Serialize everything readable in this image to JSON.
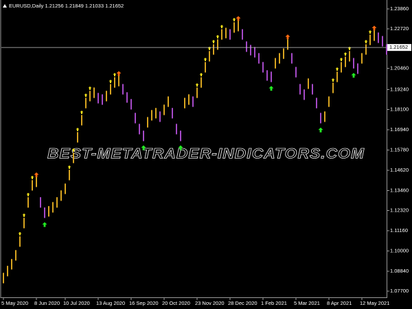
{
  "chart_data": {
    "type": "range-bar",
    "title": "EURUSD,Daily  1.21256 1.21849 1.21033 1.21652",
    "watermark": "BEST-METATRADER-INDICATORS.COM",
    "categories": [
      "5 May 2020",
      null,
      null,
      null,
      null,
      null,
      null,
      null,
      "8 Jun 2020",
      null,
      null,
      null,
      null,
      null,
      null,
      "10 Jul 2020",
      null,
      null,
      null,
      null,
      null,
      null,
      null,
      "13 Aug 2020",
      null,
      null,
      null,
      null,
      null,
      null,
      null,
      "16 Sep 2020",
      null,
      null,
      null,
      null,
      null,
      null,
      null,
      "20 Oct 2020",
      null,
      null,
      null,
      null,
      null,
      null,
      null,
      "23 Nov 2020",
      null,
      null,
      null,
      null,
      null,
      null,
      null,
      "28 Dec 2020",
      null,
      null,
      null,
      null,
      null,
      null,
      null,
      "1 Feb 2021",
      null,
      null,
      null,
      null,
      null,
      null,
      null,
      "5 Mar 2021",
      null,
      null,
      null,
      null,
      null,
      null,
      null,
      "8 Apr 2021",
      null,
      null,
      null,
      null,
      null,
      null,
      null,
      "12 May 2021",
      null,
      null,
      null,
      null,
      null,
      null
    ],
    "high": [
      1.0875,
      1.0915,
      1.0954,
      1.1005,
      1.1084,
      1.119,
      1.1308,
      1.1406,
      1.1426,
      1.1308,
      1.1249,
      1.1257,
      1.128,
      1.1308,
      1.1347,
      1.1386,
      1.1465,
      1.1563,
      1.1681,
      1.1779,
      1.1877,
      1.1917,
      1.1936,
      1.1905,
      1.1897,
      1.1917,
      1.1956,
      1.1995,
      1.2003,
      1.1956,
      1.1909,
      1.187,
      1.1791,
      1.1728,
      1.1689,
      1.1767,
      1.1807,
      1.1819,
      1.1799,
      1.1838,
      1.1885,
      1.1819,
      1.1728,
      1.1689,
      1.1877,
      1.1897,
      1.1885,
      1.1936,
      1.1995,
      1.2082,
      1.2145,
      1.2184,
      1.2212,
      1.227,
      1.2278,
      1.227,
      1.231,
      1.2318,
      1.227,
      1.22,
      1.218,
      1.2168,
      1.2133,
      1.2082,
      1.2035,
      1.2027,
      1.2105,
      1.2133,
      1.216,
      1.2212,
      1.2133,
      1.2054,
      1.1956,
      1.1925,
      1.1988,
      1.1956,
      1.1877,
      1.1791,
      1.1799,
      1.1885,
      1.1964,
      1.2027,
      1.2082,
      1.2113,
      1.2145,
      1.2105,
      1.2074,
      1.2133,
      1.2184,
      1.2239,
      1.2263,
      1.2251,
      1.2231,
      1.2184
    ],
    "low": [
      1.0815,
      1.0855,
      1.0894,
      1.0945,
      1.1024,
      1.113,
      1.1248,
      1.1346,
      1.1366,
      1.1248,
      1.1189,
      1.1197,
      1.122,
      1.1248,
      1.1287,
      1.1326,
      1.1405,
      1.1503,
      1.1621,
      1.1719,
      1.1817,
      1.1857,
      1.1876,
      1.1845,
      1.1837,
      1.1857,
      1.1896,
      1.1935,
      1.1943,
      1.1896,
      1.1849,
      1.181,
      1.1731,
      1.1668,
      1.1629,
      1.1707,
      1.1747,
      1.1759,
      1.1739,
      1.1778,
      1.1825,
      1.1759,
      1.1668,
      1.1629,
      1.1817,
      1.1837,
      1.1825,
      1.1876,
      1.1935,
      1.2022,
      1.2085,
      1.2124,
      1.2152,
      1.221,
      1.2218,
      1.221,
      1.225,
      1.2258,
      1.221,
      1.214,
      1.212,
      1.2108,
      1.2073,
      1.2022,
      1.1975,
      1.1967,
      1.2045,
      1.2073,
      1.21,
      1.2152,
      1.2073,
      1.1994,
      1.1896,
      1.1865,
      1.1928,
      1.1896,
      1.1817,
      1.1731,
      1.1739,
      1.1825,
      1.1904,
      1.1967,
      1.2022,
      1.2053,
      1.2085,
      1.2045,
      1.2014,
      1.2073,
      1.2124,
      1.2179,
      1.2203,
      1.2191,
      1.2171,
      1.2124
    ],
    "up_color": "#d9a520",
    "down_color": "#a64ac9",
    "buy_arrows": {
      "color": "#22ee22",
      "x": [
        10,
        34,
        43,
        65,
        77,
        85
      ],
      "values": [
        1.1165,
        1.1605,
        1.1605,
        1.1945,
        1.1707,
        1.202
      ]
    },
    "sell_arrows": {
      "color": "#ff6a10",
      "x": [
        8,
        28,
        57,
        69,
        90
      ],
      "values": [
        1.145,
        1.203,
        1.2345,
        1.224,
        1.229
      ]
    },
    "trend_arrows": {
      "color": "#f2e21a",
      "x": [
        4,
        5,
        6,
        7,
        16,
        17,
        18,
        19,
        20,
        21,
        26,
        27,
        47,
        48,
        49,
        50,
        51,
        52,
        53,
        56,
        80,
        81,
        82,
        83,
        84,
        88,
        89
      ],
      "values": [
        1.1109,
        1.1215,
        1.1333,
        1.1431,
        1.149,
        1.1588,
        1.1706,
        1.1804,
        1.1902,
        1.1942,
        1.1981,
        1.202,
        1.1961,
        1.202,
        1.2107,
        1.217,
        1.2209,
        1.2237,
        1.2295,
        1.2335,
        1.1989,
        1.2052,
        1.2107,
        1.2138,
        1.217,
        1.2209,
        1.2264
      ]
    },
    "current_price": 1.21652,
    "ylim": [
      1.07346,
      1.24371
    ],
    "yticks": [
      {
        "value": 1.2386,
        "label": "1.23860"
      },
      {
        "value": 1.2272,
        "label": "1.22720"
      },
      {
        "value": 1.2046,
        "label": "1.20460"
      },
      {
        "value": 1.1924,
        "label": "1.19240"
      },
      {
        "value": 1.181,
        "label": "1.18100"
      },
      {
        "value": 1.1694,
        "label": "1.16940"
      },
      {
        "value": 1.1578,
        "label": "1.15780"
      },
      {
        "value": 1.1462,
        "label": "1.14620"
      },
      {
        "value": 1.1346,
        "label": "1.13460"
      },
      {
        "value": 1.1232,
        "label": "1.12320"
      },
      {
        "value": 1.1116,
        "label": "1.11160"
      },
      {
        "value": 1.1,
        "label": "1.10000"
      },
      {
        "value": 1.0884,
        "label": "1.08840"
      },
      {
        "value": 1.077,
        "label": "1.07700"
      }
    ],
    "grid": false
  }
}
